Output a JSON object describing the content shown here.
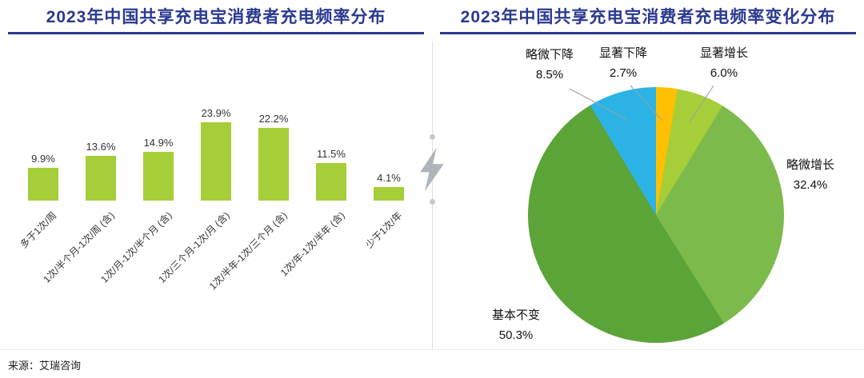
{
  "source_note": "来源：艾瑞咨询",
  "chart_data": [
    {
      "type": "bar",
      "title": "2023年中国共享充电宝消费者充电频率分布",
      "title_color": "#2B3990",
      "bar_color": "#A6CE39",
      "categories": [
        "多于1次/周",
        "1次/半个月-1次/周 (含)",
        "1次/月-1次/半个月 (含)",
        "1次/三个月-1次/月 (含)",
        "1次/半年-1次/三个月 (含)",
        "1次/年-1次/半年 (含)",
        "少于1次/年"
      ],
      "values": [
        9.9,
        13.6,
        14.9,
        23.9,
        22.2,
        11.5,
        4.1
      ],
      "value_labels": [
        "9.9%",
        "13.6%",
        "14.9%",
        "23.9%",
        "22.2%",
        "11.5%",
        "4.1%"
      ],
      "ylim": [
        0,
        30
      ],
      "grid": false,
      "legend": "none"
    },
    {
      "type": "pie",
      "title": "2023年中国共享充电宝消费者充电频率变化分布",
      "title_color": "#2B3990",
      "start_angle": "top",
      "direction": "clockwise",
      "slices": [
        {
          "label": "显著下降",
          "value": 2.7,
          "pct_label": "2.7%",
          "color": "#FFC000"
        },
        {
          "label": "显著增长",
          "value": 6.0,
          "pct_label": "6.0%",
          "color": "#A6CE39"
        },
        {
          "label": "略微增长",
          "value": 32.4,
          "pct_label": "32.4%",
          "color": "#7DBA4C"
        },
        {
          "label": "基本不变",
          "value": 50.3,
          "pct_label": "50.3%",
          "color": "#5BA437"
        },
        {
          "label": "略微下降",
          "value": 8.5,
          "pct_label": "8.5%",
          "color": "#2BB3E6"
        }
      ]
    }
  ]
}
